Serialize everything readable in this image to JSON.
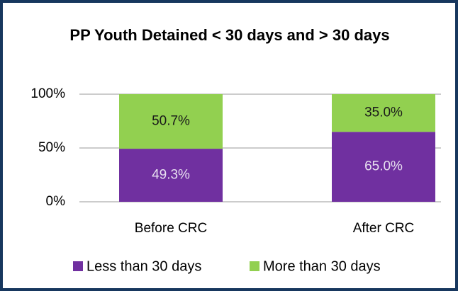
{
  "chart_data": {
    "type": "stacked_bar",
    "title": "PP Youth Detained < 30 days and > 30 days",
    "categories": [
      "Before CRC",
      "After CRC"
    ],
    "series": [
      {
        "name": "Less than 30 days",
        "color": "#7030a0",
        "values": [
          49.3,
          65.0
        ],
        "value_labels": [
          "49.3%",
          "65.0%"
        ]
      },
      {
        "name": "More than 30 days",
        "color": "#92d050",
        "values": [
          50.7,
          35.0
        ],
        "value_labels": [
          "50.7%",
          "35.0%"
        ]
      }
    ],
    "ylim": [
      0,
      100
    ],
    "yticks": [
      {
        "value": 0,
        "label": "0%"
      },
      {
        "value": 50,
        "label": "50%"
      },
      {
        "value": 100,
        "label": "100%"
      }
    ],
    "grid": true,
    "legend": "bottom"
  }
}
